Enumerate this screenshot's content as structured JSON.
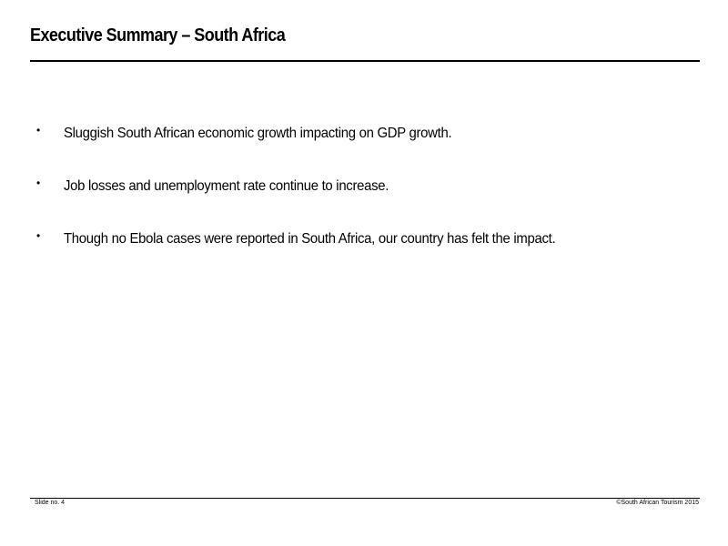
{
  "slide": {
    "title": "Executive Summary – South Africa",
    "bullets": [
      "Sluggish South African economic growth impacting on GDP growth.",
      "Job losses and unemployment rate continue to increase.",
      "Though no Ebola cases were reported in South Africa, our country has felt the impact."
    ],
    "bullet_glyph": "•"
  },
  "footer": {
    "slide_number": "Slide no. 4",
    "copyright": "©South African Tourism 2015"
  }
}
